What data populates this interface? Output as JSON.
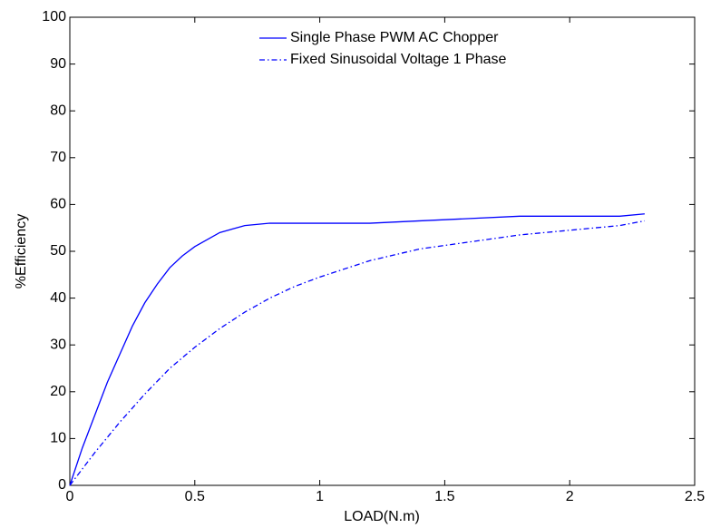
{
  "chart_data": {
    "type": "line",
    "xlabel": "LOAD(N.m)",
    "ylabel": "%Efficiency",
    "xlim": [
      0,
      2.5
    ],
    "ylim": [
      0,
      100
    ],
    "xticks": [
      0,
      0.5,
      1,
      1.5,
      2,
      2.5
    ],
    "yticks": [
      0,
      10,
      20,
      30,
      40,
      50,
      60,
      70,
      80,
      90,
      100
    ],
    "grid": false,
    "legend": "upper center",
    "series": [
      {
        "name": "Single Phase PWM AC Chopper",
        "color": "#0000ff",
        "linestyle": "solid",
        "x": [
          0,
          0.05,
          0.1,
          0.15,
          0.2,
          0.25,
          0.3,
          0.35,
          0.4,
          0.45,
          0.5,
          0.6,
          0.7,
          0.8,
          0.9,
          1.0,
          1.2,
          1.4,
          1.6,
          1.8,
          2.0,
          2.2,
          2.3
        ],
        "values": [
          0,
          8,
          15,
          22,
          28,
          34,
          39,
          43,
          46.5,
          49,
          51,
          54,
          55.5,
          56,
          56,
          56,
          56,
          56.5,
          57,
          57.5,
          57.5,
          57.5,
          58
        ]
      },
      {
        "name": "Fixed Sinusoidal Voltage 1 Phase",
        "color": "#0000ff",
        "linestyle": "dashdot",
        "x": [
          0,
          0.1,
          0.2,
          0.3,
          0.4,
          0.5,
          0.6,
          0.7,
          0.8,
          0.9,
          1.0,
          1.2,
          1.4,
          1.6,
          1.8,
          2.0,
          2.2,
          2.3
        ],
        "values": [
          0,
          7,
          13.5,
          19.5,
          25,
          29.5,
          33.5,
          37,
          40,
          42.5,
          44.5,
          48,
          50.5,
          52,
          53.5,
          54.5,
          55.5,
          56.5
        ]
      }
    ]
  }
}
